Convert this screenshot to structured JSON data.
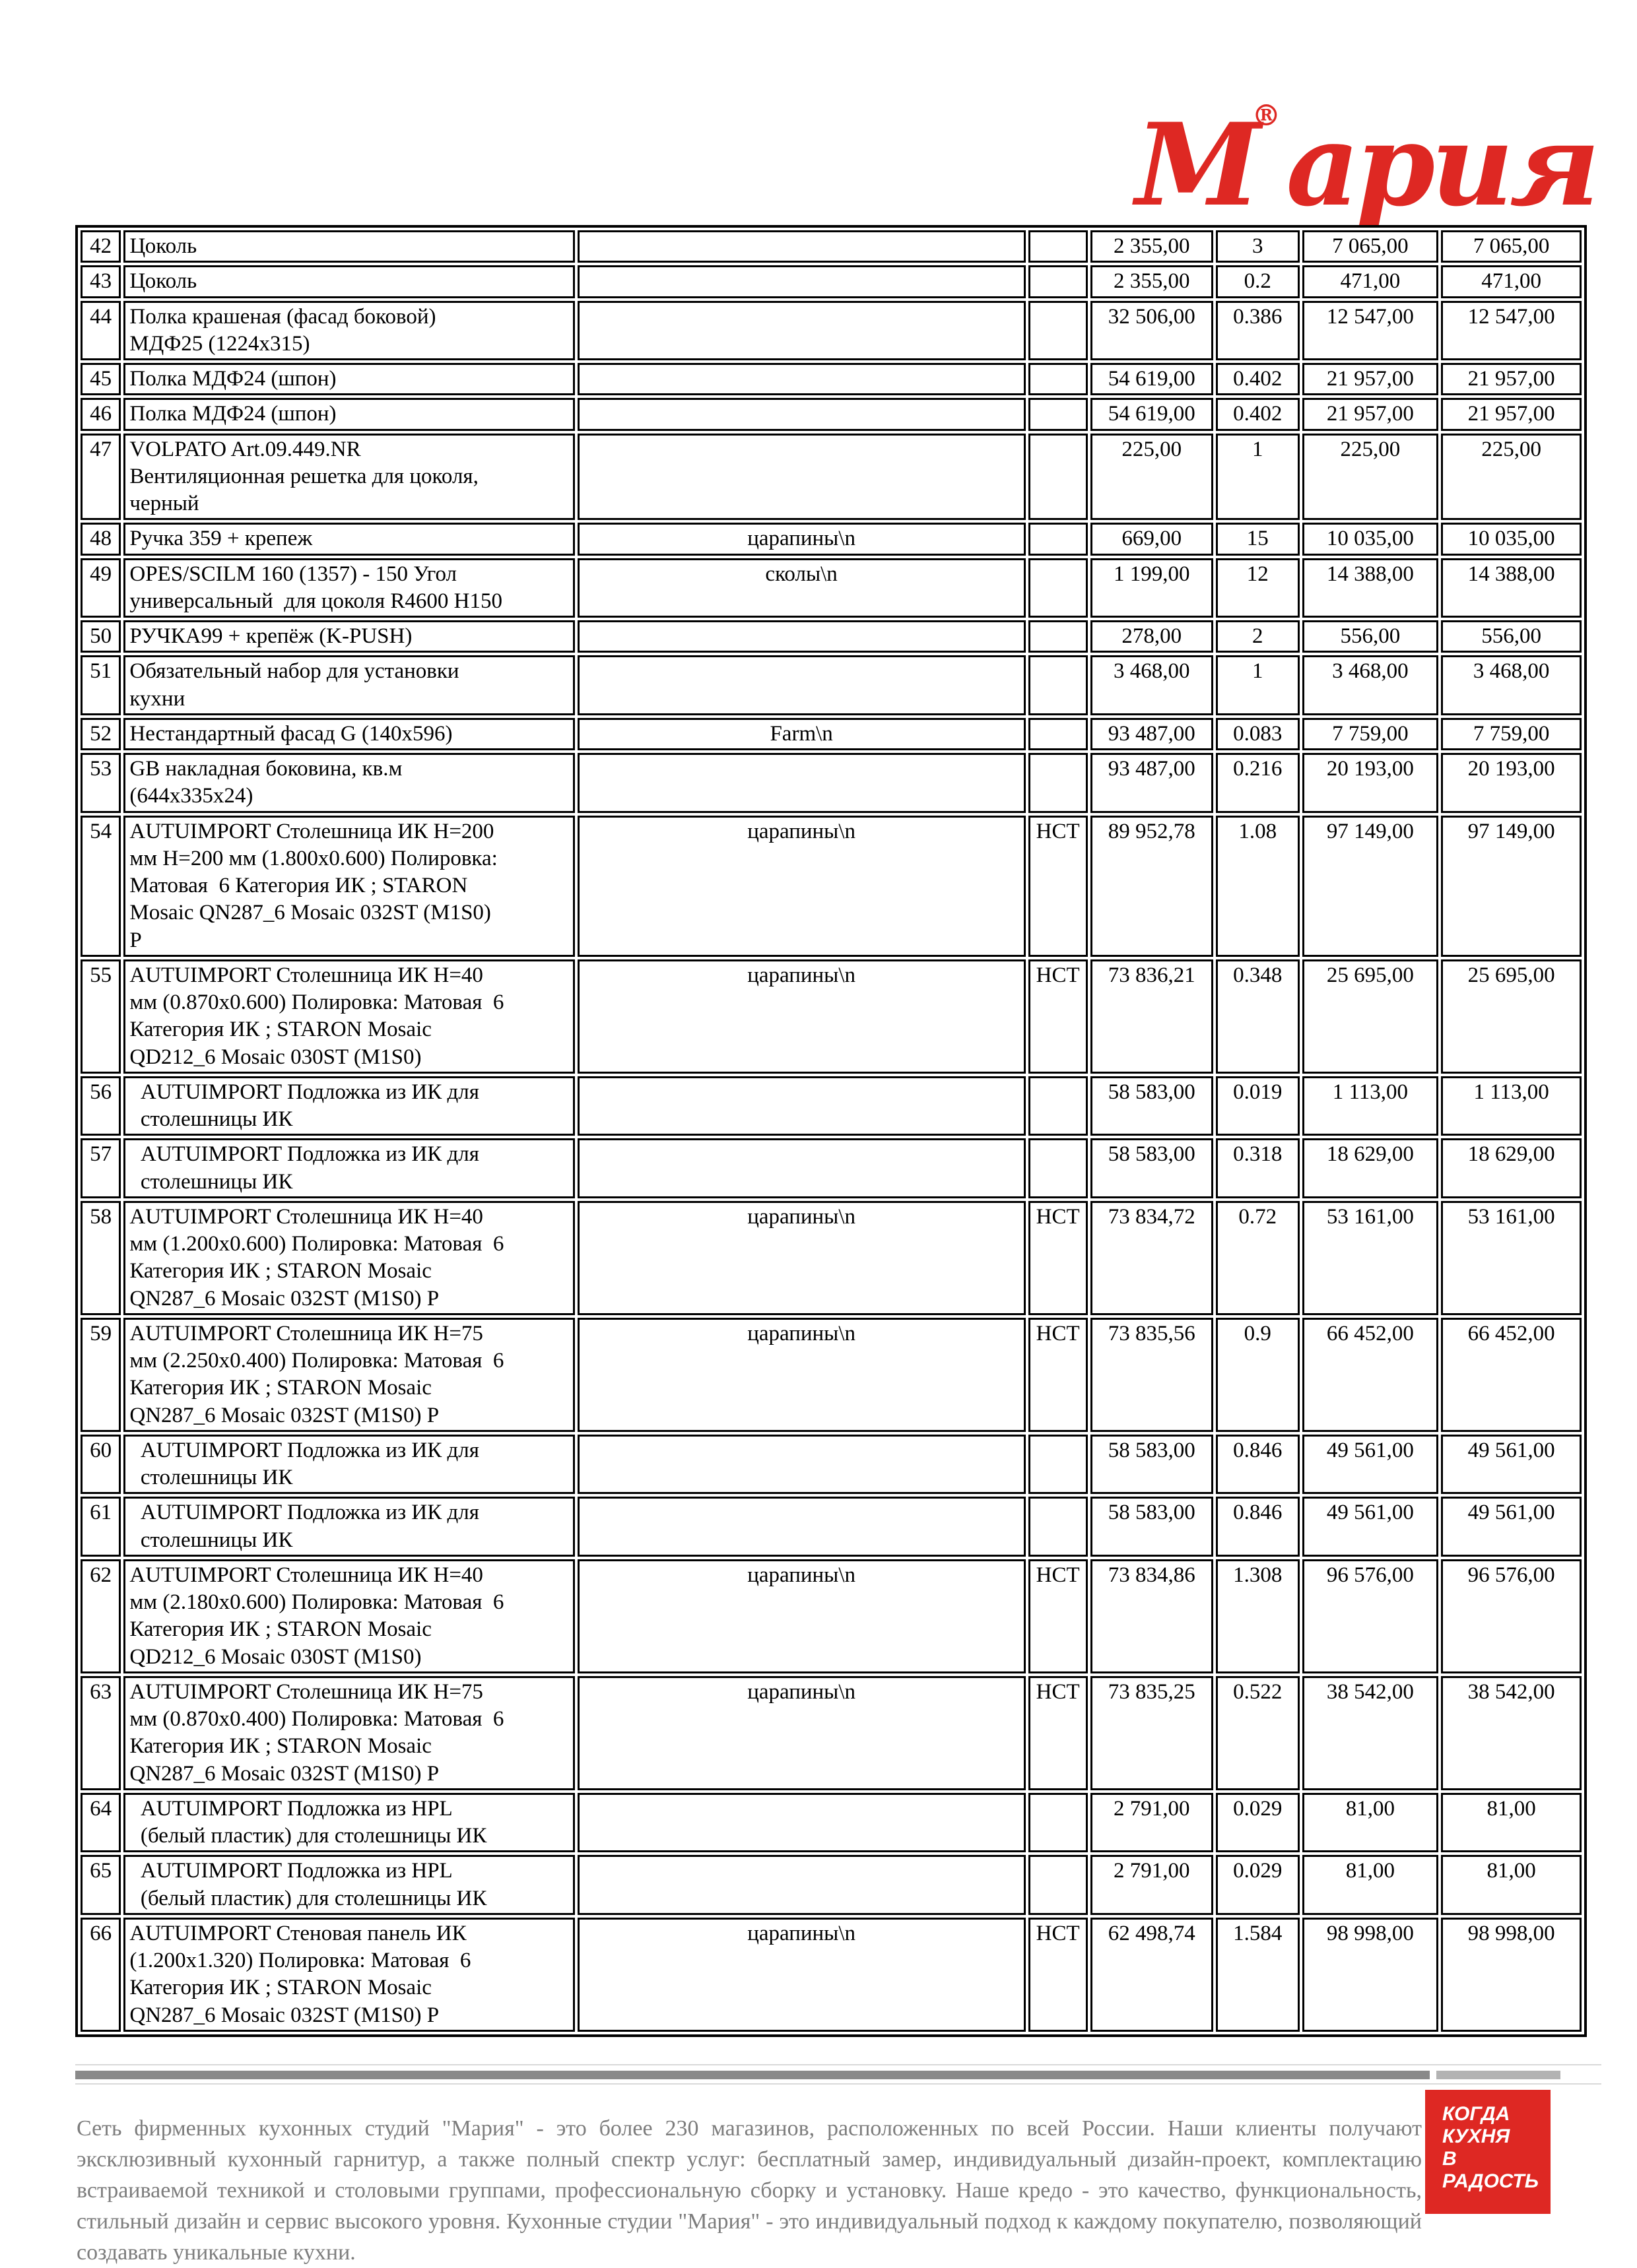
{
  "brand": {
    "logo_text": "Мария",
    "registered_mark": "®",
    "accent_color": "#de2823"
  },
  "table": {
    "columns": [
      "row_number",
      "description",
      "note",
      "category",
      "price",
      "quantity",
      "sum",
      "total"
    ],
    "rows": [
      {
        "num": "42",
        "desc": "Цоколь",
        "note": "",
        "nst": "",
        "price": "2 355,00",
        "qty": "3",
        "sum": "7 065,00",
        "total": "7 065,00"
      },
      {
        "num": "43",
        "desc": "Цоколь",
        "note": "",
        "nst": "",
        "price": "2 355,00",
        "qty": "0.2",
        "sum": "471,00",
        "total": "471,00"
      },
      {
        "num": "44",
        "desc": "Полка крашеная (фасад боковой)\nМДФ25 (1224x315)",
        "note": "",
        "nst": "",
        "price": "32 506,00",
        "qty": "0.386",
        "sum": "12 547,00",
        "total": "12 547,00"
      },
      {
        "num": "45",
        "desc": "Полка МДФ24 (шпон)",
        "note": "",
        "nst": "",
        "price": "54 619,00",
        "qty": "0.402",
        "sum": "21 957,00",
        "total": "21 957,00"
      },
      {
        "num": "46",
        "desc": "Полка МДФ24 (шпон)",
        "note": "",
        "nst": "",
        "price": "54 619,00",
        "qty": "0.402",
        "sum": "21 957,00",
        "total": "21 957,00"
      },
      {
        "num": "47",
        "desc": "VOLPATO Art.09.449.NR\nВентиляционная решетка для цоколя,\nчерный",
        "note": "",
        "nst": "",
        "price": "225,00",
        "qty": "1",
        "sum": "225,00",
        "total": "225,00"
      },
      {
        "num": "48",
        "desc": "Ручка 359 + крепеж",
        "note": "царапины\\n",
        "nst": "",
        "price": "669,00",
        "qty": "15",
        "sum": "10 035,00",
        "total": "10 035,00"
      },
      {
        "num": "49",
        "desc": "OPES/SCILM 160 (1357) - 150 Угол\nуниверсальный  для цоколя R4600 H150",
        "note": "сколы\\n",
        "nst": "",
        "price": "1 199,00",
        "qty": "12",
        "sum": "14 388,00",
        "total": "14 388,00"
      },
      {
        "num": "50",
        "desc": "РУЧКА99 + крепёж (K-PUSH)",
        "note": "",
        "nst": "",
        "price": "278,00",
        "qty": "2",
        "sum": "556,00",
        "total": "556,00"
      },
      {
        "num": "51",
        "desc": "Обязательный набор для установки\nкухни",
        "note": "",
        "nst": "",
        "price": "3 468,00",
        "qty": "1",
        "sum": "3 468,00",
        "total": "3 468,00"
      },
      {
        "num": "52",
        "desc": "Нестандартный фасад G (140x596)",
        "note": "Farm\\n",
        "nst": "",
        "price": "93 487,00",
        "qty": "0.083",
        "sum": "7 759,00",
        "total": "7 759,00"
      },
      {
        "num": "53",
        "desc": "GB накладная боковина, кв.м\n(644x335x24)",
        "note": "",
        "nst": "",
        "price": "93 487,00",
        "qty": "0.216",
        "sum": "20 193,00",
        "total": "20 193,00"
      },
      {
        "num": "54",
        "desc": "AUTUIMPORT Столешница ИК H=200\nмм H=200 мм (1.800x0.600) Полировка:\nМатовая  6 Категория ИК ; STARON\nMosaic QN287_6 Mosaic 032ST (M1S0)\nP",
        "note": "царапины\\n",
        "nst": "НСТ",
        "price": "89 952,78",
        "qty": "1.08",
        "sum": "97 149,00",
        "total": "97 149,00"
      },
      {
        "num": "55",
        "desc": "AUTUIMPORT Столешница ИК H=40\nмм (0.870x0.600) Полировка: Матовая  6\nКатегория ИК ; STARON Mosaic\nQD212_6 Mosaic 030ST (M1S0)",
        "note": "царапины\\n",
        "nst": "НСТ",
        "price": "73 836,21",
        "qty": "0.348",
        "sum": "25 695,00",
        "total": "25 695,00"
      },
      {
        "num": "56",
        "desc": "  AUTUIMPORT Подложка из ИК для\n  столешницы ИК",
        "note": "",
        "nst": "",
        "price": "58 583,00",
        "qty": "0.019",
        "sum": "1 113,00",
        "total": "1 113,00"
      },
      {
        "num": "57",
        "desc": "  AUTUIMPORT Подложка из ИК для\n  столешницы ИК",
        "note": "",
        "nst": "",
        "price": "58 583,00",
        "qty": "0.318",
        "sum": "18 629,00",
        "total": "18 629,00"
      },
      {
        "num": "58",
        "desc": "AUTUIMPORT Столешница ИК H=40\nмм (1.200x0.600) Полировка: Матовая  6\nКатегория ИК ; STARON Mosaic\nQN287_6 Mosaic 032ST (M1S0) P",
        "note": "царапины\\n",
        "nst": "НСТ",
        "price": "73 834,72",
        "qty": "0.72",
        "sum": "53 161,00",
        "total": "53 161,00"
      },
      {
        "num": "59",
        "desc": "AUTUIMPORT Столешница ИК H=75\nмм (2.250x0.400) Полировка: Матовая  6\nКатегория ИК ; STARON Mosaic\nQN287_6 Mosaic 032ST (M1S0) P",
        "note": "царапины\\n",
        "nst": "НСТ",
        "price": "73 835,56",
        "qty": "0.9",
        "sum": "66 452,00",
        "total": "66 452,00"
      },
      {
        "num": "60",
        "desc": "  AUTUIMPORT Подложка из ИК для\n  столешницы ИК",
        "note": "",
        "nst": "",
        "price": "58 583,00",
        "qty": "0.846",
        "sum": "49 561,00",
        "total": "49 561,00"
      },
      {
        "num": "61",
        "desc": "  AUTUIMPORT Подложка из ИК для\n  столешницы ИК",
        "note": "",
        "nst": "",
        "price": "58 583,00",
        "qty": "0.846",
        "sum": "49 561,00",
        "total": "49 561,00"
      },
      {
        "num": "62",
        "desc": "AUTUIMPORT Столешница ИК H=40\nмм (2.180x0.600) Полировка: Матовая  6\nКатегория ИК ; STARON Mosaic\nQD212_6 Mosaic 030ST (M1S0)",
        "note": "царапины\\n",
        "nst": "НСТ",
        "price": "73 834,86",
        "qty": "1.308",
        "sum": "96 576,00",
        "total": "96 576,00"
      },
      {
        "num": "63",
        "desc": "AUTUIMPORT Столешница ИК H=75\nмм (0.870x0.400) Полировка: Матовая  6\nКатегория ИК ; STARON Mosaic\nQN287_6 Mosaic 032ST (M1S0) P",
        "note": "царапины\\n",
        "nst": "НСТ",
        "price": "73 835,25",
        "qty": "0.522",
        "sum": "38 542,00",
        "total": "38 542,00"
      },
      {
        "num": "64",
        "desc": "  AUTUIMPORT Подложка из HPL\n  (белый пластик) для столешницы ИК",
        "note": "",
        "nst": "",
        "price": "2 791,00",
        "qty": "0.029",
        "sum": "81,00",
        "total": "81,00"
      },
      {
        "num": "65",
        "desc": "  AUTUIMPORT Подложка из HPL\n  (белый пластик) для столешницы ИК",
        "note": "",
        "nst": "",
        "price": "2 791,00",
        "qty": "0.029",
        "sum": "81,00",
        "total": "81,00"
      },
      {
        "num": "66",
        "desc": "AUTUIMPORT Стеновая панель ИК\n(1.200x1.320) Полировка: Матовая  6\nКатегория ИК ; STARON Mosaic\nQN287_6 Mosaic 032ST (M1S0) P",
        "note": "царапины\\n",
        "nst": "НСТ",
        "price": "62 498,74",
        "qty": "1.584",
        "sum": "98 998,00",
        "total": "98 998,00"
      }
    ]
  },
  "footer": {
    "about_text": "Сеть фирменных кухонных студий \"Мария\" - это более 230 магазинов, расположенных по всей России. Наши клиенты получают эксклюзивный кухонный гарнитур, а также полный спектр услуг: бесплатный замер, индивидуальный дизайн-проект, комплектацию встраиваемой техникой и столовыми группами, профессиональную сборку и установку. Наше кредо - это качество, функциональность, стильный дизайн и сервис высокого уровня. Кухонные студии \"Мария\" - это индивидуальный подход к каждому покупателю, позволяющий создавать уникальные кухни.",
    "slogan": "КОГДА\nКУХНЯ\nВ РАДОСТЬ",
    "bar_color_left": "#8a8a8a",
    "bar_color_right": "#b3b3b3",
    "badge_color": "#de2823",
    "text_color": "#7d7d7d"
  }
}
